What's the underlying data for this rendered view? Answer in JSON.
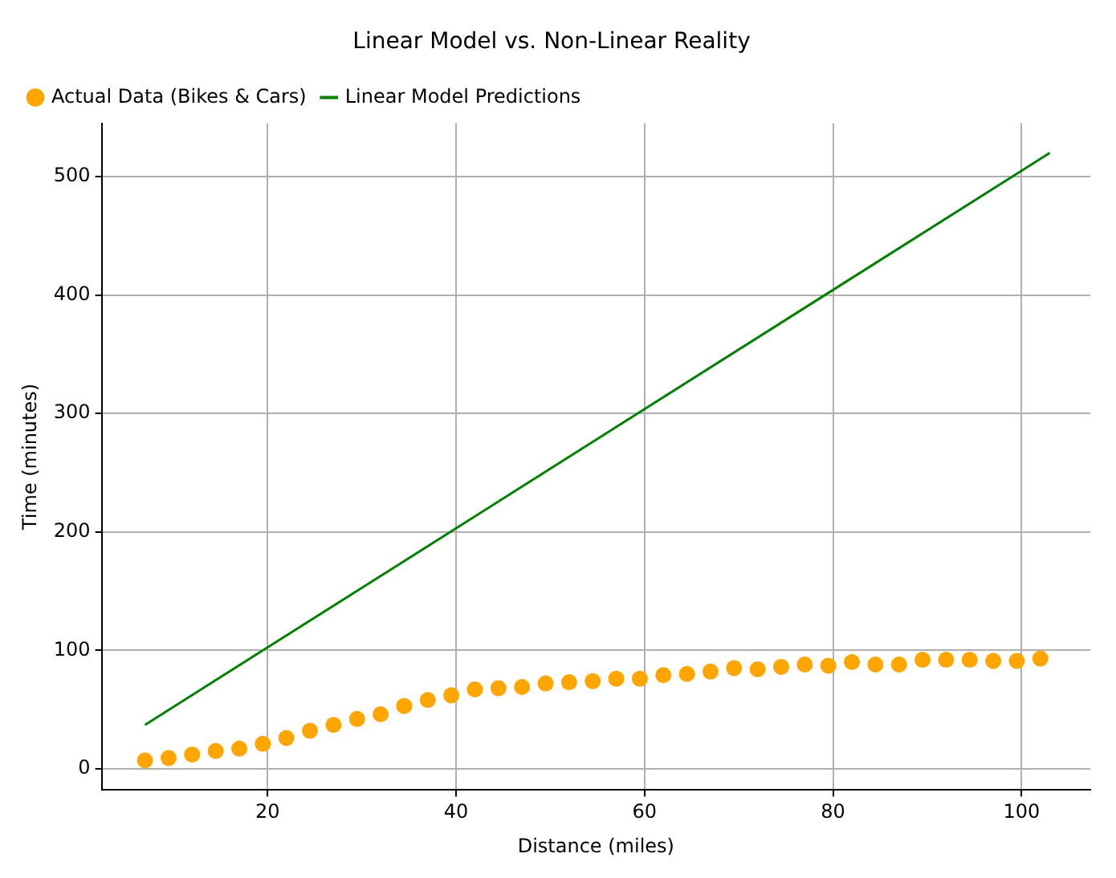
{
  "chart_data": {
    "type": "scatter",
    "title": "Linear Model vs. Non-Linear Reality",
    "xlabel": "Distance (miles)",
    "ylabel": "Time (minutes)",
    "series": [
      {
        "name": "Actual Data (Bikes & Cars)",
        "type": "scatter",
        "color": "#ffa500",
        "marker": "circle",
        "x": [
          7,
          9.5,
          12,
          14.5,
          17,
          19.5,
          22,
          24.5,
          27,
          29.5,
          32,
          34.5,
          37,
          39.5,
          42,
          44.5,
          47,
          49.5,
          52,
          54.5,
          57,
          59.5,
          62,
          64.5,
          67,
          69.5,
          72,
          74.5,
          77,
          79.5,
          82,
          84.5,
          87,
          89.5,
          92,
          94.5,
          97,
          99.5,
          102
        ],
        "values": [
          7,
          9,
          12,
          15,
          17,
          21,
          26,
          32,
          37,
          42,
          46,
          53,
          58,
          62,
          67,
          68,
          69,
          72,
          73,
          74,
          76,
          76,
          79,
          80,
          82,
          85,
          84,
          86,
          88,
          87,
          90,
          88,
          88,
          92,
          92,
          92,
          91,
          91,
          93
        ]
      },
      {
        "name": "Linear Model Predictions",
        "type": "line",
        "color": "#008000",
        "marker": "none",
        "line_style": "solid",
        "x": [
          7,
          103
        ],
        "values": [
          37,
          520
        ]
      }
    ],
    "xlim": [
      2.4,
      107.3
    ],
    "ylim": [
      -18,
      545
    ],
    "xticks": [
      20,
      40,
      60,
      80,
      100
    ],
    "yticks": [
      0,
      100,
      200,
      300,
      400,
      500
    ],
    "grid": true,
    "legend": "top left"
  }
}
